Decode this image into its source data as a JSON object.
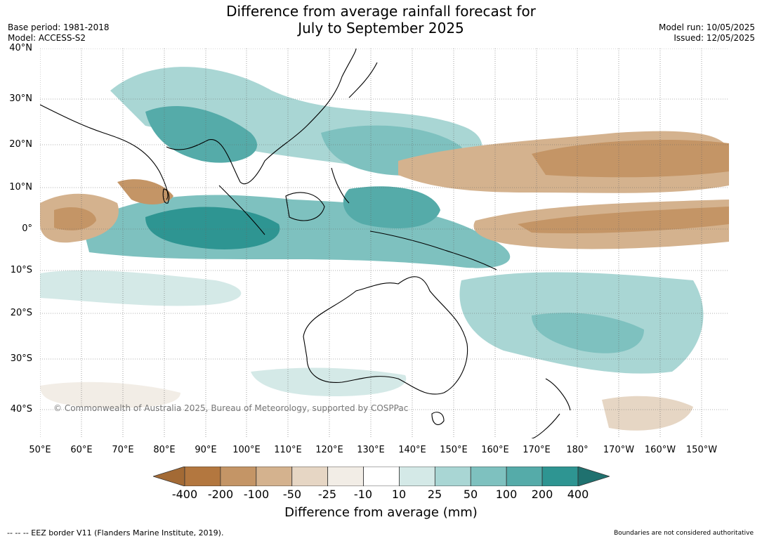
{
  "title_line1": "Difference from average rainfall forecast for",
  "title_line2": "July to September 2025",
  "base_period": "Base period: 1981-2018",
  "model": "Model: ACCESS-S2",
  "model_run": "Model run: 10/05/2025",
  "issued": "Issued: 12/05/2025",
  "lat_labels": [
    "40°N",
    "30°N",
    "20°N",
    "10°N",
    "0°",
    "10°S",
    "20°S",
    "30°S",
    "40°S"
  ],
  "lon_labels": [
    "50°E",
    "60°E",
    "70°E",
    "80°E",
    "90°E",
    "100°E",
    "110°E",
    "120°E",
    "130°E",
    "140°E",
    "150°E",
    "160°E",
    "170°E",
    "180°",
    "170°W",
    "160°W",
    "150°W"
  ],
  "copyright": "© Commonwealth of Australia 2025, Bureau of Meteorology, supported by COSPPac",
  "colorbar": {
    "title": "Difference from average (mm)",
    "ticks": [
      "-400",
      "-200",
      "-100",
      "-50",
      "-25",
      "-10",
      "10",
      "25",
      "50",
      "100",
      "200",
      "400"
    ],
    "colors": [
      "#a36a35",
      "#b3773f",
      "#c49566",
      "#d4b28e",
      "#e6d6c4",
      "#f2ede6",
      "#ffffff",
      "#d4e9e7",
      "#a9d6d4",
      "#7ec1bf",
      "#55aba9",
      "#2e9592",
      "#1f716f"
    ]
  },
  "eez_legend": "-- -- -- EEZ border V11 (Flanders Marine Institute, 2019).",
  "disclaimer": "Boundaries are not considered authoritative"
}
